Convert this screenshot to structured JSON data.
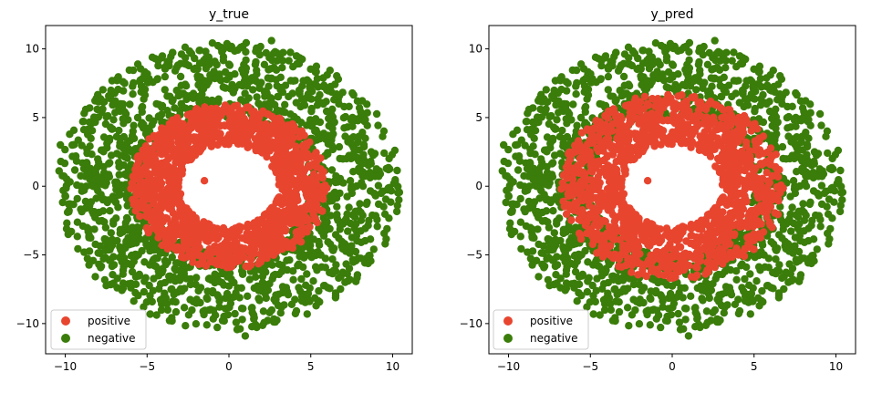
{
  "chart_data": [
    {
      "type": "scatter",
      "title": "y_true",
      "xlabel": "",
      "ylabel": "",
      "xlim": [
        -11.2,
        11.2
      ],
      "ylim": [
        -12.2,
        11.7
      ],
      "xticks": [
        -10,
        -5,
        0,
        5,
        10
      ],
      "yticks": [
        10,
        5,
        0,
        -5,
        -10
      ],
      "xtick_labels": [
        "−10",
        "−5",
        "0",
        "5",
        "10"
      ],
      "ytick_labels": [
        "10",
        "5",
        "0",
        "−5",
        "−10"
      ],
      "legend": {
        "placement": "lower-left",
        "entries": [
          "positive",
          "negative"
        ]
      },
      "series": [
        {
          "name": "positive",
          "color": "#e8452f",
          "radius_range": [
            3.0,
            6.0
          ]
        },
        {
          "name": "negative",
          "color": "#3a7d0a",
          "radius_range": [
            5.0,
            10.5
          ]
        }
      ],
      "outlier_points": [
        {
          "series": "negative",
          "x": -10.3,
          "y": 3.0
        },
        {
          "series": "negative",
          "x": 1.0,
          "y": -10.9
        },
        {
          "series": "negative",
          "x": 2.6,
          "y": 10.6
        },
        {
          "series": "negative",
          "x": 10.3,
          "y": -1.4
        },
        {
          "series": "positive",
          "x": -1.5,
          "y": 0.4
        }
      ]
    },
    {
      "type": "scatter",
      "title": "y_pred",
      "xlabel": "",
      "ylabel": "",
      "xlim": [
        -11.2,
        11.2
      ],
      "ylim": [
        -12.2,
        11.7
      ],
      "xticks": [
        -10,
        -5,
        0,
        5,
        10
      ],
      "yticks": [
        10,
        5,
        0,
        -5,
        -10
      ],
      "xtick_labels": [
        "−10",
        "−5",
        "0",
        "5",
        "10"
      ],
      "ytick_labels": [
        "10",
        "5",
        "0",
        "−5",
        "−10"
      ],
      "legend": {
        "placement": "lower-left",
        "entries": [
          "positive",
          "negative"
        ]
      },
      "series": [
        {
          "name": "positive",
          "color": "#e8452f",
          "radius_range": [
            3.0,
            6.8
          ]
        },
        {
          "name": "negative",
          "color": "#3a7d0a",
          "radius_range": [
            5.0,
            10.5
          ]
        }
      ],
      "outlier_points": [
        {
          "series": "negative",
          "x": -10.3,
          "y": 3.0
        },
        {
          "series": "negative",
          "x": 1.0,
          "y": -10.9
        },
        {
          "series": "negative",
          "x": 2.6,
          "y": 10.6
        },
        {
          "series": "negative",
          "x": 10.3,
          "y": -1.4
        },
        {
          "series": "positive",
          "x": -1.5,
          "y": 0.4
        }
      ]
    }
  ]
}
